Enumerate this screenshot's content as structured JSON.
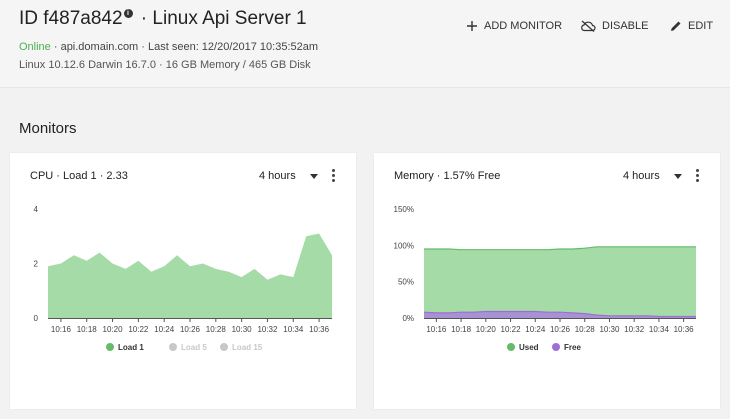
{
  "header": {
    "id_label": "ID f487a842",
    "info_glyph": "i",
    "server_name": " · Linux Api Server 1",
    "status": "Online",
    "status_rest": " · api.domain.com · Last seen: 12/20/2017 10:35:52am",
    "specs": "Linux 10.12.6 Darwin 16.7.0 · 16 GB Memory / 465 GB Disk",
    "actions": {
      "add_monitor": "ADD MONITOR",
      "disable": "DISABLE",
      "edit": "EDIT"
    }
  },
  "section_title": "Monitors",
  "cards": {
    "cpu": {
      "title": "CPU · Load 1 · 2.33",
      "range": "4 hours"
    },
    "memory": {
      "title": "Memory · 1.57% Free",
      "range": "4 hours"
    }
  },
  "colors": {
    "online": "#4caf50",
    "load1": "#66bb6a",
    "fill_green": "#a5dba7",
    "used": "#66bb6a",
    "free": "#9c6fd6",
    "disabled_legend": "#c8c8c8"
  },
  "chart_data": [
    {
      "type": "area",
      "x": [
        "10:15",
        "10:16",
        "10:17",
        "10:18",
        "10:19",
        "10:20",
        "10:21",
        "10:22",
        "10:23",
        "10:24",
        "10:25",
        "10:26",
        "10:27",
        "10:28",
        "10:29",
        "10:30",
        "10:31",
        "10:32",
        "10:33",
        "10:34",
        "10:35",
        "10:36",
        "10:37"
      ],
      "xticks": [
        "10:16",
        "10:18",
        "10:20",
        "10:22",
        "10:24",
        "10:26",
        "10:28",
        "10:30",
        "10:32",
        "10:34",
        "10:36"
      ],
      "yticks": [
        "0",
        "2",
        "4"
      ],
      "ylim": [
        0,
        4
      ],
      "series": [
        {
          "name": "Load 1",
          "enabled": true,
          "values": [
            1.9,
            2.0,
            2.3,
            2.1,
            2.4,
            2.0,
            1.8,
            2.1,
            1.7,
            1.9,
            2.3,
            1.9,
            2.0,
            1.8,
            1.7,
            1.5,
            1.8,
            1.4,
            1.6,
            1.5,
            3.0,
            3.1,
            2.3
          ]
        },
        {
          "name": "Load 5",
          "enabled": false
        },
        {
          "name": "Load 15",
          "enabled": false
        }
      ]
    },
    {
      "type": "area",
      "x": [
        "10:15",
        "10:16",
        "10:17",
        "10:18",
        "10:19",
        "10:20",
        "10:21",
        "10:22",
        "10:23",
        "10:24",
        "10:25",
        "10:26",
        "10:27",
        "10:28",
        "10:29",
        "10:30",
        "10:31",
        "10:32",
        "10:33",
        "10:34",
        "10:35",
        "10:36",
        "10:37"
      ],
      "xticks": [
        "10:16",
        "10:18",
        "10:20",
        "10:22",
        "10:24",
        "10:26",
        "10:28",
        "10:30",
        "10:32",
        "10:34",
        "10:36"
      ],
      "yticks": [
        "0%",
        "50%",
        "100%",
        "150%"
      ],
      "ylim": [
        0,
        150
      ],
      "series": [
        {
          "name": "Used",
          "enabled": true,
          "values": [
            95,
            95,
            95,
            94,
            94,
            94,
            94,
            94,
            94,
            94,
            94,
            95,
            95,
            96,
            98,
            98,
            98,
            98,
            98,
            98,
            98,
            98,
            98
          ]
        },
        {
          "name": "Free",
          "enabled": true,
          "values": [
            8,
            7,
            7,
            8,
            8,
            9,
            9,
            9,
            9,
            9,
            8,
            8,
            7,
            6,
            4,
            3,
            3,
            3,
            3,
            2,
            2,
            2,
            2
          ]
        }
      ]
    }
  ]
}
